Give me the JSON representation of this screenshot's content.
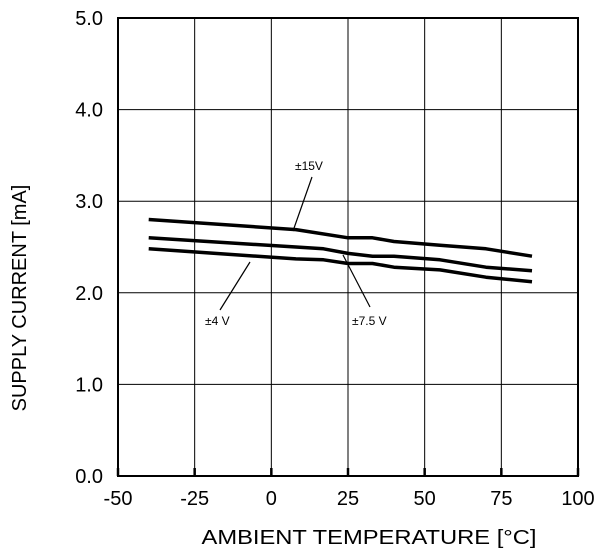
{
  "chart_data": {
    "type": "line",
    "xlabel": "AMBIENT TEMPERATURE [°C]",
    "ylabel": "SUPPLY CURRENT [mA]",
    "xlim": [
      -50,
      100
    ],
    "ylim": [
      0,
      5
    ],
    "xticks": [
      -50,
      -25,
      0,
      25,
      50,
      75,
      100
    ],
    "yticks": [
      0,
      1,
      2,
      3,
      4,
      5
    ],
    "xtick_labels": [
      "-50",
      "-25",
      "0",
      "25",
      "50",
      "75",
      "100"
    ],
    "ytick_labels": [
      "0.0",
      "1.0",
      "2.0",
      "3.0",
      "4.0",
      "5.0"
    ],
    "grid": true,
    "series": [
      {
        "name": "±15V",
        "x": [
          -40,
          8,
          25,
          33,
          40,
          55,
          70,
          85
        ],
        "y": [
          2.8,
          2.69,
          2.6,
          2.6,
          2.56,
          2.52,
          2.48,
          2.4
        ]
      },
      {
        "name": "±7.5 V",
        "x": [
          -40,
          8,
          17,
          25,
          33,
          40,
          55,
          70,
          85
        ],
        "y": [
          2.6,
          2.5,
          2.48,
          2.43,
          2.4,
          2.4,
          2.36,
          2.28,
          2.24
        ]
      },
      {
        "name": "±4 V",
        "x": [
          -40,
          8,
          17,
          25,
          33,
          40,
          55,
          70,
          85
        ],
        "y": [
          2.48,
          2.37,
          2.36,
          2.32,
          2.32,
          2.28,
          2.25,
          2.17,
          2.12
        ]
      }
    ]
  }
}
